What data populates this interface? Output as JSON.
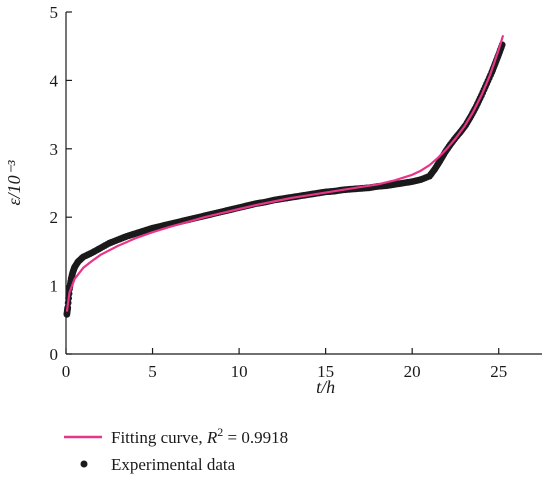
{
  "chart_data": {
    "type": "line",
    "xlabel": "t/h",
    "ylabel": "ε/10⁻³",
    "xlim": [
      0,
      27.5
    ],
    "ylim": [
      0,
      5
    ],
    "xticks": [
      0,
      5,
      10,
      15,
      20,
      25
    ],
    "yticks": [
      0,
      1,
      2,
      3,
      4,
      5
    ],
    "grid": false,
    "legend_position": "bottom",
    "series": [
      {
        "name": "Experimental data",
        "kind": "scatter",
        "color": "#1a1a1a",
        "x": [
          0.05,
          0.1,
          0.2,
          0.3,
          0.4,
          0.5,
          0.7,
          1.0,
          1.5,
          2.0,
          2.5,
          3.0,
          3.5,
          4.0,
          4.5,
          5.0,
          5.5,
          6.0,
          6.5,
          7.0,
          7.5,
          8.0,
          8.5,
          9.0,
          9.5,
          10.0,
          10.5,
          11.0,
          11.5,
          12.0,
          12.5,
          13.0,
          13.5,
          14.0,
          14.5,
          15.0,
          15.5,
          16.0,
          16.5,
          17.0,
          17.5,
          18.0,
          18.5,
          19.0,
          19.5,
          20.0,
          20.5,
          21.0,
          21.3,
          21.6,
          21.9,
          22.2,
          22.5,
          22.8,
          23.1,
          23.4,
          23.7,
          24.0,
          24.3,
          24.6,
          24.8,
          25.0,
          25.2
        ],
        "y": [
          0.58,
          0.68,
          0.95,
          1.1,
          1.2,
          1.27,
          1.35,
          1.42,
          1.48,
          1.55,
          1.62,
          1.67,
          1.72,
          1.76,
          1.8,
          1.84,
          1.87,
          1.9,
          1.93,
          1.96,
          1.99,
          2.02,
          2.05,
          2.08,
          2.11,
          2.14,
          2.17,
          2.2,
          2.22,
          2.25,
          2.27,
          2.29,
          2.31,
          2.33,
          2.35,
          2.37,
          2.38,
          2.4,
          2.41,
          2.42,
          2.43,
          2.45,
          2.46,
          2.48,
          2.5,
          2.52,
          2.55,
          2.6,
          2.7,
          2.82,
          2.95,
          3.06,
          3.16,
          3.25,
          3.35,
          3.48,
          3.62,
          3.78,
          3.95,
          4.12,
          4.25,
          4.38,
          4.52
        ]
      },
      {
        "name": "Fitting curve, R² = 0.9918",
        "kind": "line",
        "color": "#e8358a",
        "x": [
          0.05,
          0.2,
          0.5,
          1.0,
          1.5,
          2.0,
          3.0,
          4.0,
          5.0,
          6.0,
          7.0,
          8.0,
          9.0,
          10.0,
          11.0,
          12.0,
          13.0,
          14.0,
          15.0,
          16.0,
          17.0,
          18.0,
          19.0,
          20.0,
          20.5,
          21.0,
          21.5,
          22.0,
          22.5,
          23.0,
          23.5,
          24.0,
          24.5,
          25.0,
          25.25
        ],
        "y": [
          0.62,
          0.9,
          1.1,
          1.26,
          1.36,
          1.45,
          1.58,
          1.69,
          1.78,
          1.86,
          1.93,
          2.0,
          2.06,
          2.12,
          2.18,
          2.23,
          2.28,
          2.32,
          2.36,
          2.4,
          2.44,
          2.48,
          2.54,
          2.62,
          2.68,
          2.76,
          2.87,
          3.0,
          3.15,
          3.32,
          3.53,
          3.78,
          4.08,
          4.45,
          4.66
        ]
      }
    ]
  },
  "legend": {
    "fit_label": "Fitting curve, ",
    "fit_r": "R",
    "fit_sup": "2",
    "fit_value": " = 0.9918",
    "exp_label": "Experimental data"
  }
}
